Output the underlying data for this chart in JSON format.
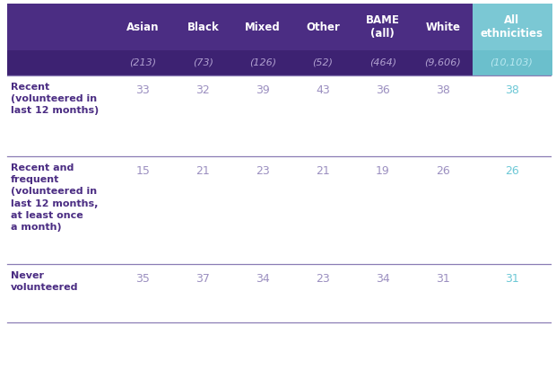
{
  "columns": [
    "Asian",
    "Black",
    "Mixed",
    "Other",
    "BAME\n(all)",
    "White",
    "All\nethnicities"
  ],
  "sample_sizes": [
    "(213)",
    "(73)",
    "(126)",
    "(52)",
    "(464)",
    "(9,606)",
    "(10,103)"
  ],
  "rows": [
    {
      "label": "Recent\n(volunteered in\nlast 12 months)",
      "values": [
        "33",
        "32",
        "39",
        "43",
        "36",
        "38",
        "38"
      ]
    },
    {
      "label": "Recent and\nfrequent\n(volunteered in\nlast 12 months,\nat least once\na month)",
      "values": [
        "15",
        "21",
        "23",
        "21",
        "19",
        "26",
        "26"
      ]
    },
    {
      "label": "Never\nvolunteered",
      "values": [
        "35",
        "37",
        "34",
        "23",
        "34",
        "31",
        "31"
      ]
    }
  ],
  "header_bg": "#4B2D83",
  "header_last_bg": "#7BC8D4",
  "subheader_bg": "#3D2272",
  "subheader_last_bg": "#6BBFCC",
  "header_text_color": "#FFFFFF",
  "row_label_color": "#4B2D83",
  "data_color_regular": "#9B8FC0",
  "data_color_last": "#6DC8D6",
  "divider_color": "#8B7DB5",
  "bg_color": "#FFFFFF",
  "col_header_fontsize": 8.5,
  "data_fontsize": 9,
  "label_fontsize": 8,
  "sample_fontsize": 8
}
